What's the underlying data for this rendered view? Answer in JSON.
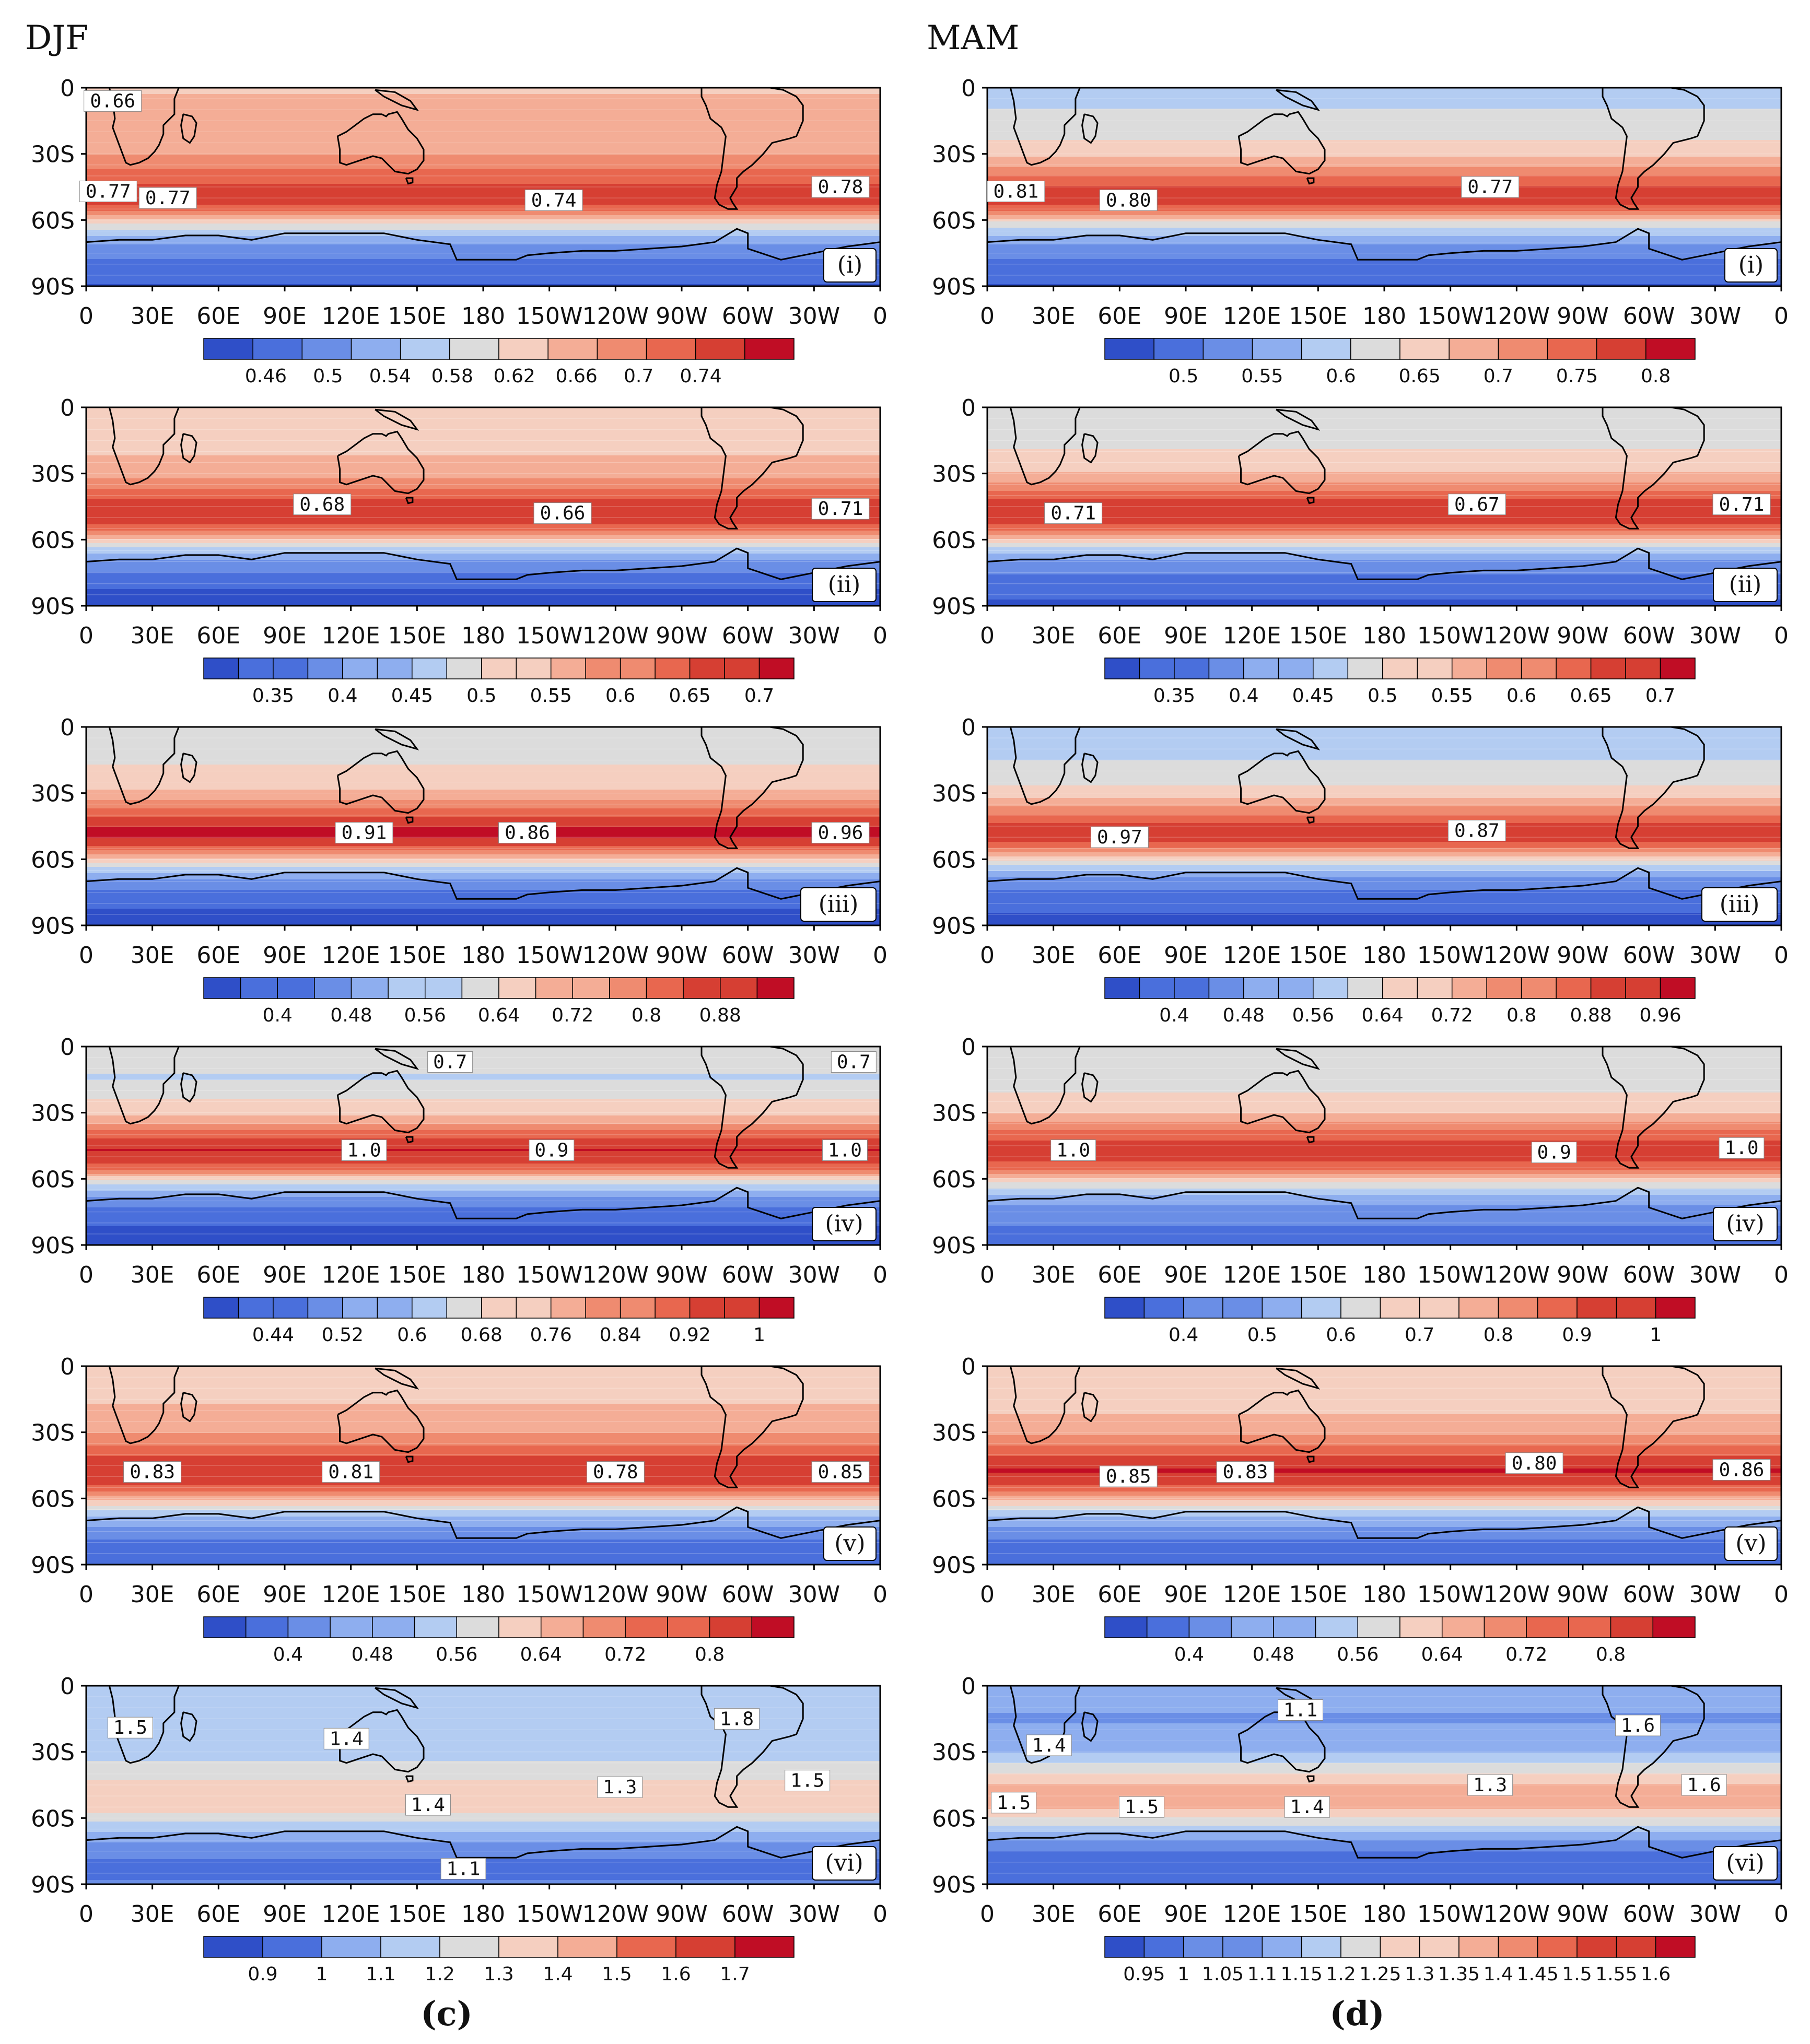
{
  "columns": [
    {
      "title": "DJF",
      "letter": "(c)"
    },
    {
      "title": "MAM",
      "letter": "(d)"
    }
  ],
  "axes": {
    "x_ticks": [
      "0",
      "30E",
      "60E",
      "90E",
      "120E",
      "150E",
      "180",
      "150W",
      "120W",
      "90W",
      "60W",
      "30W",
      "0"
    ],
    "y_ticks": [
      "0",
      "30S",
      "60S",
      "90S"
    ]
  },
  "colors": {
    "ramp": [
      "#2f4fc8",
      "#4a6fdc",
      "#6a8ee6",
      "#8eaeef",
      "#b3ccf2",
      "#dcdcdc",
      "#f5cfc0",
      "#f4ad96",
      "#ef8b70",
      "#e8674f",
      "#d63f33",
      "#c00d25"
    ],
    "coast": "#000000"
  },
  "chart_data": [
    {
      "type": "heatmap",
      "column": "DJF",
      "panel": "(i)",
      "region": "Southern Hemisphere 0-90S, 0-360",
      "colorbar": {
        "ticks": [
          "0.46",
          "0.5",
          "0.54",
          "0.58",
          "0.62",
          "0.66",
          "0.7",
          "0.74"
        ],
        "min": 0.42,
        "max": 0.8,
        "boxes": 12
      },
      "zonal_profile": [
        {
          "lat": 0,
          "v": 0.64
        },
        {
          "lat": 15,
          "v": 0.65
        },
        {
          "lat": 30,
          "v": 0.67
        },
        {
          "lat": 40,
          "v": 0.72
        },
        {
          "lat": 48,
          "v": 0.76
        },
        {
          "lat": 55,
          "v": 0.73
        },
        {
          "lat": 62,
          "v": 0.6
        },
        {
          "lat": 70,
          "v": 0.52
        },
        {
          "lat": 80,
          "v": 0.47
        },
        {
          "lat": 90,
          "v": 0.45
        }
      ],
      "contour_labels": [
        {
          "text": "0.66",
          "lon": 12,
          "lat": 6
        },
        {
          "text": "0.77",
          "lon": 10,
          "lat": 47
        },
        {
          "text": "0.77",
          "lon": 37,
          "lat": 50
        },
        {
          "text": "0.74",
          "lon": 212,
          "lat": 51
        },
        {
          "text": "0.78",
          "lon": 342,
          "lat": 45
        }
      ]
    },
    {
      "type": "heatmap",
      "column": "MAM",
      "panel": "(i)",
      "region": "Southern Hemisphere 0-90S, 0-360",
      "colorbar": {
        "ticks": [
          "0.5",
          "0.55",
          "0.6",
          "0.65",
          "0.7",
          "0.75",
          "0.8"
        ],
        "min": 0.45,
        "max": 0.825,
        "boxes": 12
      },
      "zonal_profile": [
        {
          "lat": 0,
          "v": 0.6
        },
        {
          "lat": 15,
          "v": 0.61
        },
        {
          "lat": 30,
          "v": 0.66
        },
        {
          "lat": 40,
          "v": 0.73
        },
        {
          "lat": 48,
          "v": 0.79
        },
        {
          "lat": 55,
          "v": 0.75
        },
        {
          "lat": 62,
          "v": 0.62
        },
        {
          "lat": 70,
          "v": 0.55
        },
        {
          "lat": 80,
          "v": 0.5
        },
        {
          "lat": 90,
          "v": 0.48
        }
      ],
      "contour_labels": [
        {
          "text": "0.81",
          "lon": 13,
          "lat": 47
        },
        {
          "text": "0.80",
          "lon": 64,
          "lat": 51
        },
        {
          "text": "0.77",
          "lon": 228,
          "lat": 45
        }
      ]
    },
    {
      "type": "heatmap",
      "column": "DJF",
      "panel": "(ii)",
      "region": "Southern Hemisphere 0-90S, 0-360",
      "colorbar": {
        "ticks": [
          "0.35",
          "0.4",
          "0.45",
          "0.5",
          "0.55",
          "0.6",
          "0.65",
          "0.7"
        ],
        "min": 0.3,
        "max": 0.725,
        "boxes": 17
      },
      "zonal_profile": [
        {
          "lat": 0,
          "v": 0.52
        },
        {
          "lat": 15,
          "v": 0.53
        },
        {
          "lat": 30,
          "v": 0.57
        },
        {
          "lat": 40,
          "v": 0.64
        },
        {
          "lat": 47,
          "v": 0.69
        },
        {
          "lat": 55,
          "v": 0.64
        },
        {
          "lat": 62,
          "v": 0.5
        },
        {
          "lat": 70,
          "v": 0.4
        },
        {
          "lat": 80,
          "v": 0.34
        },
        {
          "lat": 90,
          "v": 0.32
        }
      ],
      "contour_labels": [
        {
          "text": "0.68",
          "lon": 107,
          "lat": 44
        },
        {
          "text": "0.66",
          "lon": 216,
          "lat": 48
        },
        {
          "text": "0.71",
          "lon": 342,
          "lat": 46
        }
      ]
    },
    {
      "type": "heatmap",
      "column": "MAM",
      "panel": "(ii)",
      "region": "Southern Hemisphere 0-90S, 0-360",
      "colorbar": {
        "ticks": [
          "0.35",
          "0.4",
          "0.45",
          "0.5",
          "0.55",
          "0.6",
          "0.65",
          "0.7"
        ],
        "min": 0.3,
        "max": 0.725,
        "boxes": 17
      },
      "zonal_profile": [
        {
          "lat": 0,
          "v": 0.49
        },
        {
          "lat": 15,
          "v": 0.5
        },
        {
          "lat": 30,
          "v": 0.55
        },
        {
          "lat": 40,
          "v": 0.64
        },
        {
          "lat": 47,
          "v": 0.69
        },
        {
          "lat": 55,
          "v": 0.64
        },
        {
          "lat": 62,
          "v": 0.5
        },
        {
          "lat": 70,
          "v": 0.4
        },
        {
          "lat": 80,
          "v": 0.35
        },
        {
          "lat": 90,
          "v": 0.33
        }
      ],
      "contour_labels": [
        {
          "text": "0.71",
          "lon": 39,
          "lat": 48
        },
        {
          "text": "0.67",
          "lon": 222,
          "lat": 44
        },
        {
          "text": "0.71",
          "lon": 342,
          "lat": 44
        }
      ]
    },
    {
      "type": "heatmap",
      "column": "DJF",
      "panel": "(iii)",
      "region": "Southern Hemisphere 0-90S, 0-360",
      "colorbar": {
        "ticks": [
          "0.4",
          "0.48",
          "0.56",
          "0.64",
          "0.72",
          "0.8",
          "0.88"
        ],
        "min": 0.32,
        "max": 0.96,
        "boxes": 16
      },
      "zonal_profile": [
        {
          "lat": 0,
          "v": 0.62
        },
        {
          "lat": 15,
          "v": 0.63
        },
        {
          "lat": 30,
          "v": 0.7
        },
        {
          "lat": 40,
          "v": 0.84
        },
        {
          "lat": 48,
          "v": 0.93
        },
        {
          "lat": 55,
          "v": 0.84
        },
        {
          "lat": 62,
          "v": 0.62
        },
        {
          "lat": 70,
          "v": 0.46
        },
        {
          "lat": 80,
          "v": 0.38
        },
        {
          "lat": 90,
          "v": 0.35
        }
      ],
      "contour_labels": [
        {
          "text": "0.91",
          "lon": 126,
          "lat": 48
        },
        {
          "text": "0.86",
          "lon": 200,
          "lat": 48
        },
        {
          "text": "0.96",
          "lon": 342,
          "lat": 48
        }
      ]
    },
    {
      "type": "heatmap",
      "column": "MAM",
      "panel": "(iii)",
      "region": "Southern Hemisphere 0-90S, 0-360",
      "colorbar": {
        "ticks": [
          "0.4",
          "0.48",
          "0.56",
          "0.64",
          "0.72",
          "0.8",
          "0.88",
          "0.96"
        ],
        "min": 0.32,
        "max": 1.0,
        "boxes": 17
      },
      "zonal_profile": [
        {
          "lat": 0,
          "v": 0.58
        },
        {
          "lat": 15,
          "v": 0.6
        },
        {
          "lat": 30,
          "v": 0.68
        },
        {
          "lat": 40,
          "v": 0.84
        },
        {
          "lat": 48,
          "v": 0.94
        },
        {
          "lat": 55,
          "v": 0.84
        },
        {
          "lat": 62,
          "v": 0.62
        },
        {
          "lat": 70,
          "v": 0.46
        },
        {
          "lat": 80,
          "v": 0.39
        },
        {
          "lat": 90,
          "v": 0.36
        }
      ],
      "contour_labels": [
        {
          "text": "0.97",
          "lon": 60,
          "lat": 50
        },
        {
          "text": "0.87",
          "lon": 222,
          "lat": 47
        }
      ]
    },
    {
      "type": "heatmap",
      "column": "DJF",
      "panel": "(iv)",
      "region": "Southern Hemisphere 0-90S, 0-360",
      "colorbar": {
        "ticks": [
          "0.44",
          "0.52",
          "0.6",
          "0.68",
          "0.76",
          "0.84",
          "0.92",
          "1"
        ],
        "min": 0.36,
        "max": 1.04,
        "boxes": 17
      },
      "zonal_profile": [
        {
          "lat": 0,
          "v": 0.66
        },
        {
          "lat": 15,
          "v": 0.64
        },
        {
          "lat": 30,
          "v": 0.74
        },
        {
          "lat": 40,
          "v": 0.9
        },
        {
          "lat": 47,
          "v": 0.99
        },
        {
          "lat": 55,
          "v": 0.9
        },
        {
          "lat": 62,
          "v": 0.66
        },
        {
          "lat": 70,
          "v": 0.5
        },
        {
          "lat": 80,
          "v": 0.42
        },
        {
          "lat": 90,
          "v": 0.39
        }
      ],
      "contour_labels": [
        {
          "text": "0.7",
          "lon": 165,
          "lat": 7
        },
        {
          "text": "0.7",
          "lon": 348,
          "lat": 7
        },
        {
          "text": "1.0",
          "lon": 126,
          "lat": 47
        },
        {
          "text": "0.9",
          "lon": 211,
          "lat": 47
        },
        {
          "text": "1.0",
          "lon": 344,
          "lat": 47
        }
      ]
    },
    {
      "type": "heatmap",
      "column": "MAM",
      "panel": "(iv)",
      "region": "Southern Hemisphere 0-90S, 0-360",
      "colorbar": {
        "ticks": [
          "0.4",
          "0.5",
          "0.6",
          "0.7",
          "0.8",
          "0.9",
          "1"
        ],
        "min": 0.3,
        "max": 1.05,
        "boxes": 15
      },
      "zonal_profile": [
        {
          "lat": 0,
          "v": 0.63
        },
        {
          "lat": 15,
          "v": 0.64
        },
        {
          "lat": 30,
          "v": 0.73
        },
        {
          "lat": 40,
          "v": 0.9
        },
        {
          "lat": 47,
          "v": 0.98
        },
        {
          "lat": 55,
          "v": 0.9
        },
        {
          "lat": 62,
          "v": 0.66
        },
        {
          "lat": 70,
          "v": 0.5
        },
        {
          "lat": 80,
          "v": 0.43
        },
        {
          "lat": 90,
          "v": 0.4
        }
      ],
      "contour_labels": [
        {
          "text": "1.0",
          "lon": 39,
          "lat": 47
        },
        {
          "text": "0.9",
          "lon": 257,
          "lat": 48
        },
        {
          "text": "1.0",
          "lon": 342,
          "lat": 46
        }
      ]
    },
    {
      "type": "heatmap",
      "column": "DJF",
      "panel": "(v)",
      "region": "Southern Hemisphere 0-90S, 0-360",
      "colorbar": {
        "ticks": [
          "0.4",
          "0.48",
          "0.56",
          "0.64",
          "0.72",
          "0.8"
        ],
        "min": 0.32,
        "max": 0.88,
        "boxes": 14
      },
      "zonal_profile": [
        {
          "lat": 0,
          "v": 0.62
        },
        {
          "lat": 15,
          "v": 0.64
        },
        {
          "lat": 30,
          "v": 0.69
        },
        {
          "lat": 40,
          "v": 0.78
        },
        {
          "lat": 47,
          "v": 0.83
        },
        {
          "lat": 55,
          "v": 0.78
        },
        {
          "lat": 62,
          "v": 0.62
        },
        {
          "lat": 70,
          "v": 0.48
        },
        {
          "lat": 80,
          "v": 0.4
        },
        {
          "lat": 90,
          "v": 0.37
        }
      ],
      "contour_labels": [
        {
          "text": "0.83",
          "lon": 30,
          "lat": 48
        },
        {
          "text": "0.81",
          "lon": 120,
          "lat": 48
        },
        {
          "text": "0.78",
          "lon": 240,
          "lat": 48
        },
        {
          "text": "0.85",
          "lon": 342,
          "lat": 48
        }
      ]
    },
    {
      "type": "heatmap",
      "column": "MAM",
      "panel": "(v)",
      "region": "Southern Hemisphere 0-90S, 0-360",
      "colorbar": {
        "ticks": [
          "0.4",
          "0.48",
          "0.56",
          "0.64",
          "0.72",
          "0.8"
        ],
        "min": 0.32,
        "max": 0.88,
        "boxes": 14
      },
      "zonal_profile": [
        {
          "lat": 0,
          "v": 0.6
        },
        {
          "lat": 15,
          "v": 0.62
        },
        {
          "lat": 30,
          "v": 0.68
        },
        {
          "lat": 40,
          "v": 0.78
        },
        {
          "lat": 47,
          "v": 0.84
        },
        {
          "lat": 55,
          "v": 0.78
        },
        {
          "lat": 62,
          "v": 0.62
        },
        {
          "lat": 70,
          "v": 0.48
        },
        {
          "lat": 80,
          "v": 0.4
        },
        {
          "lat": 90,
          "v": 0.37
        }
      ],
      "contour_labels": [
        {
          "text": "0.85",
          "lon": 64,
          "lat": 50
        },
        {
          "text": "0.83",
          "lon": 117,
          "lat": 48
        },
        {
          "text": "0.80",
          "lon": 248,
          "lat": 44
        },
        {
          "text": "0.86",
          "lon": 342,
          "lat": 47
        }
      ]
    },
    {
      "type": "heatmap",
      "column": "DJF",
      "panel": "(vi)",
      "region": "Southern Hemisphere 0-90S, 0-360",
      "colorbar": {
        "ticks": [
          "0.9",
          "1",
          "1.1",
          "1.2",
          "1.3",
          "1.4",
          "1.5",
          "1.6",
          "1.7"
        ],
        "min": 0.8,
        "max": 1.8,
        "boxes": 10
      },
      "zonal_profile": [
        {
          "lat": 0,
          "v": 1.18
        },
        {
          "lat": 15,
          "v": 1.15
        },
        {
          "lat": 30,
          "v": 1.18
        },
        {
          "lat": 40,
          "v": 1.28
        },
        {
          "lat": 50,
          "v": 1.37
        },
        {
          "lat": 58,
          "v": 1.3
        },
        {
          "lat": 65,
          "v": 1.15
        },
        {
          "lat": 72,
          "v": 1.04
        },
        {
          "lat": 80,
          "v": 0.95
        },
        {
          "lat": 90,
          "v": 0.97
        }
      ],
      "contour_labels": [
        {
          "text": "1.5",
          "lon": 20,
          "lat": 19
        },
        {
          "text": "1.4",
          "lon": 118,
          "lat": 24
        },
        {
          "text": "1.4",
          "lon": 155,
          "lat": 54
        },
        {
          "text": "1.3",
          "lon": 242,
          "lat": 46
        },
        {
          "text": "1.8",
          "lon": 295,
          "lat": 15
        },
        {
          "text": "1.5",
          "lon": 327,
          "lat": 43
        },
        {
          "text": "1.1",
          "lon": 171,
          "lat": 83
        }
      ]
    },
    {
      "type": "heatmap",
      "column": "MAM",
      "panel": "(vi)",
      "region": "Southern Hemisphere 0-90S, 0-360",
      "colorbar": {
        "ticks": [
          "0.95",
          "1",
          "1.05",
          "1.1",
          "1.15",
          "1.2",
          "1.25",
          "1.3",
          "1.35",
          "1.4",
          "1.45",
          "1.5",
          "1.55",
          "1.6"
        ],
        "min": 0.9,
        "max": 1.65,
        "boxes": 15
      },
      "zonal_profile": [
        {
          "lat": 0,
          "v": 1.12
        },
        {
          "lat": 15,
          "v": 1.08
        },
        {
          "lat": 30,
          "v": 1.15
        },
        {
          "lat": 40,
          "v": 1.28
        },
        {
          "lat": 50,
          "v": 1.4
        },
        {
          "lat": 58,
          "v": 1.32
        },
        {
          "lat": 65,
          "v": 1.17
        },
        {
          "lat": 72,
          "v": 1.05
        },
        {
          "lat": 80,
          "v": 0.97
        },
        {
          "lat": 90,
          "v": 1.0
        }
      ],
      "contour_labels": [
        {
          "text": "1.1",
          "lon": 142,
          "lat": 11
        },
        {
          "text": "1.4",
          "lon": 28,
          "lat": 27
        },
        {
          "text": "1.5",
          "lon": 12,
          "lat": 53
        },
        {
          "text": "1.5",
          "lon": 70,
          "lat": 55
        },
        {
          "text": "1.4",
          "lon": 145,
          "lat": 55
        },
        {
          "text": "1.3",
          "lon": 228,
          "lat": 45
        },
        {
          "text": "1.6",
          "lon": 295,
          "lat": 18
        },
        {
          "text": "1.6",
          "lon": 325,
          "lat": 45
        }
      ]
    }
  ]
}
